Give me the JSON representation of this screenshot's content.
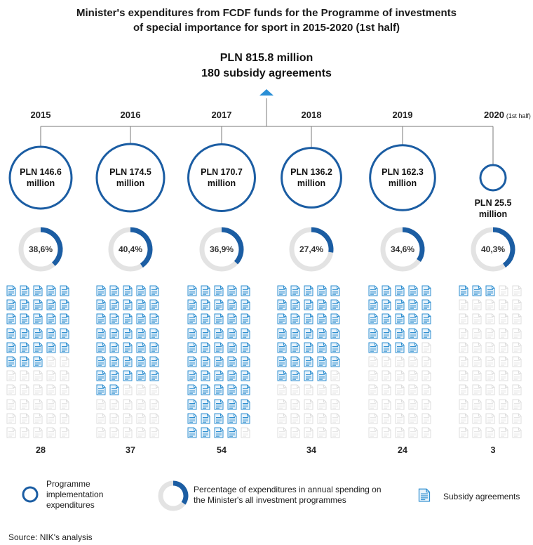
{
  "chart_data": {
    "type": "infographic",
    "title_line1": "Minister's expenditures from FCDF funds for the Programme of investments",
    "title_line2": "of special importance for sport in 2015-2020 (1st half)",
    "total_amount": "PLN 815.8 million",
    "total_agreements": "180 subsidy agreements",
    "units": "PLN million",
    "years": [
      {
        "year": "2015",
        "note": "",
        "amount_line1": "PLN 146.6",
        "amount_line2": "million",
        "expenditure": 146.6,
        "percent_label": "38,6%",
        "percent": 38.6,
        "agreements": 28
      },
      {
        "year": "2016",
        "note": "",
        "amount_line1": "PLN 174.5",
        "amount_line2": "million",
        "expenditure": 174.5,
        "percent_label": "40,4%",
        "percent": 40.4,
        "agreements": 37
      },
      {
        "year": "2017",
        "note": "",
        "amount_line1": "PLN 170.7",
        "amount_line2": "million",
        "expenditure": 170.7,
        "percent_label": "36,9%",
        "percent": 36.9,
        "agreements": 54
      },
      {
        "year": "2018",
        "note": "",
        "amount_line1": "PLN 136.2",
        "amount_line2": "million",
        "expenditure": 136.2,
        "percent_label": "27,4%",
        "percent": 27.4,
        "agreements": 34
      },
      {
        "year": "2019",
        "note": "",
        "amount_line1": "PLN 162.3",
        "amount_line2": "million",
        "expenditure": 162.3,
        "percent_label": "34,6%",
        "percent": 34.6,
        "agreements": 24
      },
      {
        "year": "2020",
        "note": "(1st half)",
        "amount_line1": "PLN 25.5",
        "amount_line2": "million",
        "expenditure": 25.5,
        "percent_label": "40,3%",
        "percent": 40.3,
        "agreements": 3
      }
    ],
    "legend": {
      "circle_line1": "Programme",
      "circle_line2": "implementation",
      "circle_line3": "expenditures",
      "donut_line1": "Percentage of expenditures in annual spending on",
      "donut_line2": "the Minister's all investment programmes",
      "doc": "Subsidy agreements"
    },
    "source": "Source: NIK's analysis"
  },
  "colors": {
    "blue": "#1b5da3",
    "ring_gray": "#e3e3e3",
    "doc_blue": "#2f8fd0",
    "doc_fill": "#e8f3fb",
    "doc_gray": "#dcdcdc",
    "line": "#7a7a7a",
    "triangle": "#2a8fd6"
  }
}
